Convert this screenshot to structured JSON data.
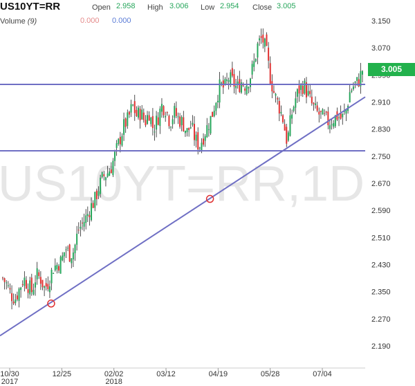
{
  "header": {
    "symbol": "US10YT=RR",
    "open_label": "Open",
    "open_value": "2.958",
    "high_label": "High",
    "high_value": "3.006",
    "low_label": "Low",
    "low_value": "2.954",
    "close_label": "Close",
    "close_value": "3.005",
    "volume_label": "Volume",
    "volume_period": "(9)",
    "volume_value_1": "0.000",
    "volume_value_2": "0.000"
  },
  "watermark": "US10YT=RR,1D",
  "last_price_tag": "3.005",
  "colors": {
    "up": "#26a65b",
    "down": "#e03131",
    "trendline": "#6f6fc4",
    "price_tag": "#22b14c",
    "watermark": "#e6e6e6"
  },
  "chart_data": {
    "type": "candlestick",
    "ylim": [
      2.19,
      3.15
    ],
    "y_ticks": [
      "3.150",
      "3.070",
      "2.990",
      "2.910",
      "2.830",
      "2.750",
      "2.670",
      "2.590",
      "2.510",
      "2.430",
      "2.350",
      "2.270",
      "2.190"
    ],
    "x_ticks": [
      {
        "label": "10/30",
        "sub": "2017"
      },
      {
        "label": "12/25",
        "sub": ""
      },
      {
        "label": "02/02",
        "sub": "2018"
      },
      {
        "label": "03/12",
        "sub": ""
      },
      {
        "label": "04/19",
        "sub": ""
      },
      {
        "label": "05/28",
        "sub": ""
      },
      {
        "label": "07/04",
        "sub": ""
      }
    ],
    "close_path": [
      2.39,
      2.37,
      2.34,
      2.33,
      2.36,
      2.39,
      2.37,
      2.35,
      2.4,
      2.39,
      2.36,
      2.38,
      2.42,
      2.43,
      2.44,
      2.48,
      2.46,
      2.47,
      2.53,
      2.55,
      2.57,
      2.6,
      2.62,
      2.66,
      2.69,
      2.7,
      2.72,
      2.76,
      2.8,
      2.84,
      2.86,
      2.9,
      2.87,
      2.88,
      2.85,
      2.88,
      2.83,
      2.86,
      2.9,
      2.89,
      2.85,
      2.88,
      2.86,
      2.85,
      2.82,
      2.84,
      2.8,
      2.78,
      2.81,
      2.84,
      2.87,
      2.92,
      2.96,
      2.95,
      2.98,
      2.97,
      2.95,
      2.97,
      2.96,
      2.98,
      3.02,
      3.08,
      3.1,
      3.06,
      2.98,
      2.93,
      2.9,
      2.86,
      2.79,
      2.87,
      2.92,
      2.95,
      2.96,
      2.93,
      2.9,
      2.88,
      2.87,
      2.86,
      2.85,
      2.86,
      2.87,
      2.86,
      2.88,
      2.94,
      2.96,
      2.97,
      3.005
    ],
    "horizontal_lines": [
      2.962,
      2.766
    ],
    "trendline": {
      "x0": 0,
      "y0": 2.22,
      "x1": 1,
      "y1": 2.925
    },
    "markers": [
      {
        "x": 0.14,
        "y": 2.315
      },
      {
        "x": 0.575,
        "y": 2.624
      }
    ]
  }
}
